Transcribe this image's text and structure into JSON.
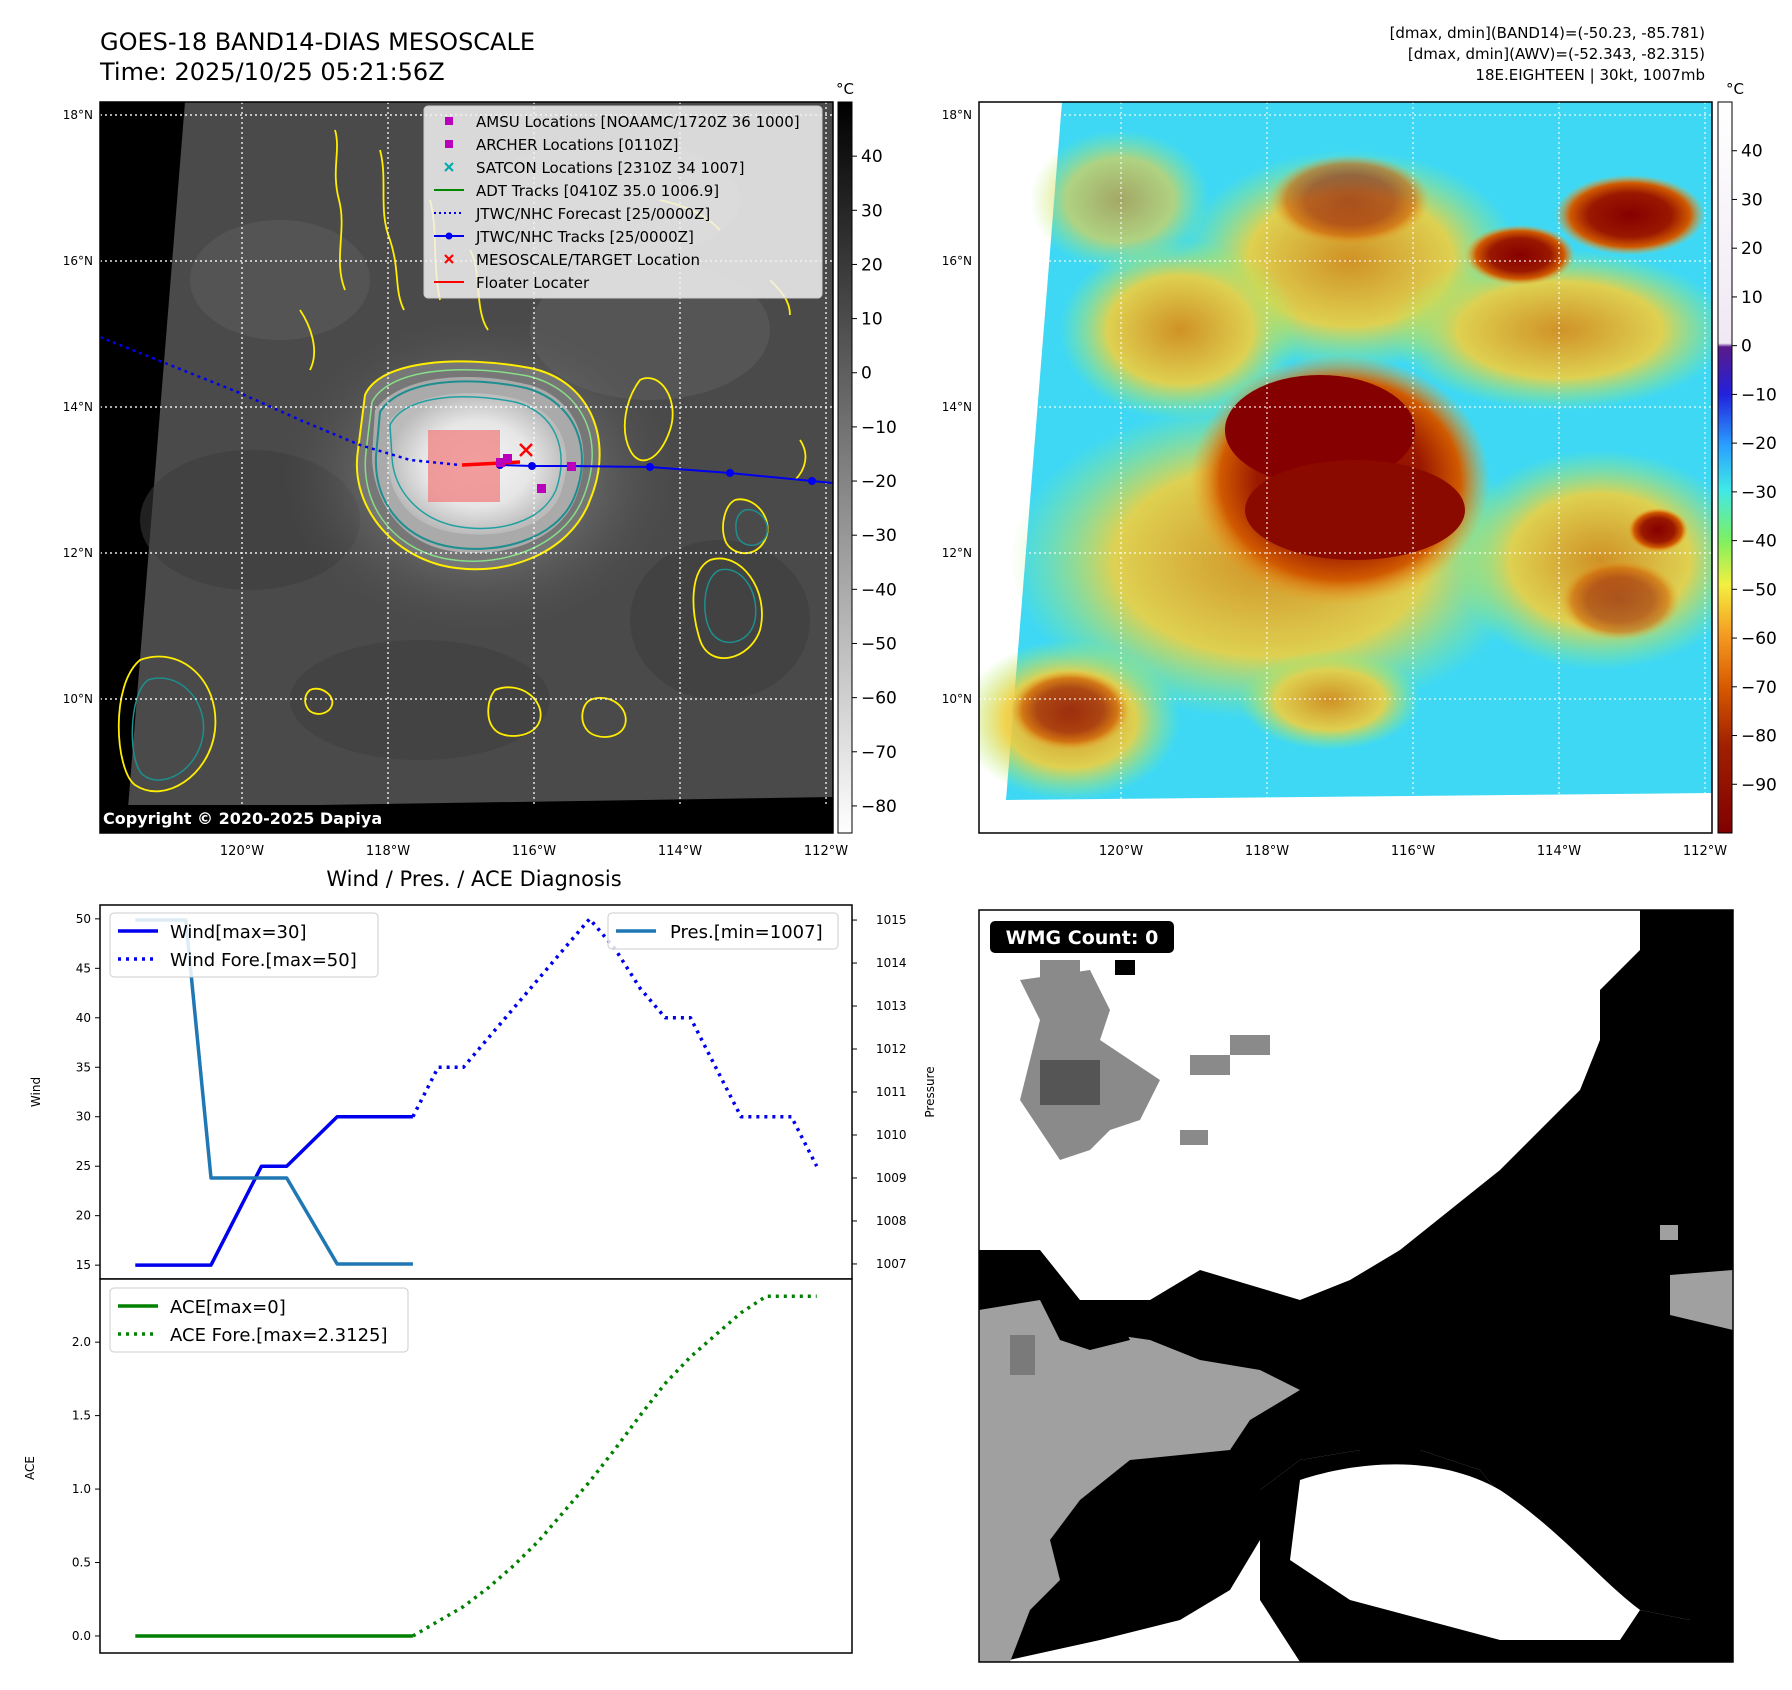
{
  "header": {
    "title_line1": "GOES-18 BAND14-DIAS MESOSCALE",
    "title_line2": "Time: 2025/10/25 05:21:56Z",
    "stat_line1": "[dmax, dmin](BAND14)=(-50.23, -85.781)",
    "stat_line2": "[dmax, dmin](AWV)=(-52.343, -82.315)",
    "stat_line3": "18E.EIGHTEEN | 30kt, 1007mb"
  },
  "map": {
    "lat_labels": [
      "18°N",
      "16°N",
      "14°N",
      "12°N",
      "10°N"
    ],
    "lat_values": [
      18,
      16,
      14,
      12,
      10
    ],
    "lon_labels": [
      "120°W",
      "118°W",
      "116°W",
      "114°W",
      "112°W"
    ],
    "lon_values": [
      -120,
      -118,
      -116,
      -114,
      -112
    ],
    "lon_range": [
      -122,
      -112
    ],
    "lat_range": [
      8.4,
      18.2
    ],
    "copyright": "Copyright © 2020-2025 Dapiya",
    "colors": {
      "track": "#0000ee",
      "forecast": "#0000ee",
      "target": "#ff0000",
      "locater": "#ff0000",
      "amsu": "#bb00bb",
      "satcon": "#00aaaa",
      "adt": "#008800",
      "box": "#f08080"
    }
  },
  "legend": {
    "items": [
      "AMSU Locations [NOAAMC/1720Z 36 1000]",
      "ARCHER Locations [0110Z]",
      "SATCON Locations [2310Z 34 1007]",
      "ADT Tracks [0410Z 35.0 1006.9]",
      "JTWC/NHC Forecast [25/0000Z]",
      "JTWC/NHC Tracks [25/0000Z]",
      "MESOSCALE/TARGET Location",
      "Floater Locater"
    ]
  },
  "colorbar_left": {
    "unit": "°C",
    "ticks": [
      "40",
      "30",
      "20",
      "10",
      "0",
      "−10",
      "−20",
      "−30",
      "−40",
      "−50",
      "−60",
      "−70",
      "−80"
    ],
    "values": [
      40,
      30,
      20,
      10,
      0,
      -10,
      -20,
      -30,
      -40,
      -50,
      -60,
      -70,
      -80
    ],
    "range": [
      -85,
      50
    ]
  },
  "colorbar_right": {
    "unit": "°C",
    "ticks": [
      "40",
      "30",
      "20",
      "10",
      "0",
      "−10",
      "−20",
      "−30",
      "−40",
      "−50",
      "−60",
      "−70",
      "−80",
      "−90"
    ],
    "values": [
      40,
      30,
      20,
      10,
      0,
      -10,
      -20,
      -30,
      -40,
      -50,
      -60,
      -70,
      -80,
      -90
    ],
    "range": [
      -100,
      50
    ]
  },
  "wmg": {
    "label": "WMG Count: 0"
  },
  "chart_data": [
    {
      "type": "line",
      "title": "Wind / Pres. / ACE Diagnosis",
      "ylabel": "Wind",
      "ylim": [
        13.6,
        51.4
      ],
      "yticks": [
        15,
        20,
        25,
        30,
        35,
        40,
        45,
        50
      ],
      "y2label": "Pressure",
      "y2lim": [
        1006.65,
        1015.35
      ],
      "y2ticks": [
        1007,
        1008,
        1009,
        1010,
        1011,
        1012,
        1013,
        1014,
        1015
      ],
      "xlim": [
        -1.4,
        28.4
      ],
      "series": [
        {
          "name": "Wind[max=30]",
          "axis": "left",
          "color": "#0000ee",
          "style": "solid",
          "x": [
            0,
            3,
            5,
            6,
            8,
            11
          ],
          "y": [
            15,
            15,
            25,
            25,
            30,
            30
          ]
        },
        {
          "name": "Wind Fore.[max=50]",
          "axis": "left",
          "color": "#0000ee",
          "style": "dotted",
          "x": [
            11,
            12,
            13,
            14,
            15,
            16,
            17,
            18,
            19,
            20,
            21,
            22,
            23,
            24,
            25,
            26,
            27
          ],
          "y": [
            30,
            35,
            35,
            38,
            41,
            44,
            47,
            50,
            47,
            43,
            40,
            40,
            35,
            30,
            30,
            30,
            25
          ]
        },
        {
          "name": "Pres.[min=1007]",
          "axis": "right",
          "color": "#1f77b4",
          "style": "solid",
          "x": [
            0,
            2,
            3,
            4,
            6,
            8,
            11
          ],
          "y": [
            1015,
            1015,
            1009,
            1009,
            1009,
            1007,
            1007
          ]
        }
      ]
    },
    {
      "type": "line",
      "ylabel": "ACE",
      "ylim": [
        -0.116,
        2.43
      ],
      "yticks": [
        0.0,
        0.5,
        1.0,
        1.5,
        2.0
      ],
      "ytick_labels": [
        "0.0",
        "0.5",
        "1.0",
        "1.5",
        "2.0"
      ],
      "xlim": [
        -1.4,
        28.4
      ],
      "series": [
        {
          "name": "ACE[max=0]",
          "color": "#008000",
          "style": "solid",
          "x": [
            0,
            11
          ],
          "y": [
            0,
            0
          ]
        },
        {
          "name": "ACE Fore.[max=2.3125]",
          "color": "#008000",
          "style": "dotted",
          "x": [
            11,
            12,
            13,
            14,
            15,
            16,
            17,
            18,
            19,
            20,
            21,
            22,
            23,
            24,
            25,
            26,
            27
          ],
          "y": [
            0,
            0.1,
            0.2,
            0.33,
            0.48,
            0.65,
            0.85,
            1.05,
            1.27,
            1.5,
            1.72,
            1.9,
            2.05,
            2.2,
            2.3125,
            2.3125,
            2.3125
          ]
        }
      ]
    }
  ]
}
